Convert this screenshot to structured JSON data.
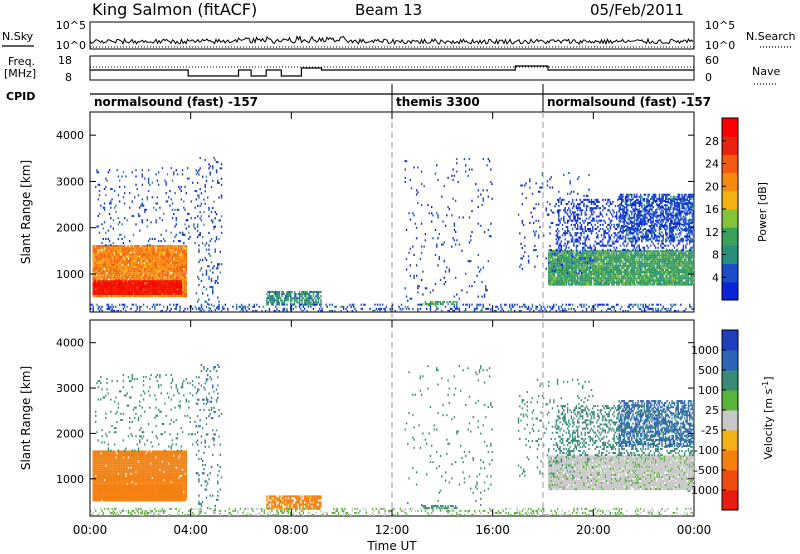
{
  "header": {
    "station": "King Salmon (fitACF)",
    "beam": "Beam 13",
    "date": "05/Feb/2011"
  },
  "summary_panels": {
    "nsky_label": "N.Sky",
    "nsearch_label": "N.Search",
    "noise_ticks": [
      "10^5",
      "10^0"
    ],
    "freq_label_line1": "Freq.",
    "freq_label_line2": "[MHz]",
    "freq_ticks": [
      "18",
      "8"
    ],
    "nave_label": "Nave",
    "nave_ticks": [
      "60",
      "0"
    ],
    "cpid_label": "CPID"
  },
  "cpid_segments": [
    {
      "name": "normalsound (fast) -157",
      "start_hour": 0
    },
    {
      "name": "themis 3300",
      "start_hour": 12
    },
    {
      "name": "normalsound (fast) -157",
      "start_hour": 18
    }
  ],
  "time_axis": {
    "ticks": [
      "00:00",
      "04:00",
      "08:00",
      "12:00",
      "16:00",
      "20:00",
      "00:00"
    ],
    "xlabel": "Time UT"
  },
  "range_axis": {
    "ylabel": "Slant Range [km]",
    "ticks": [
      "1000",
      "2000",
      "3000",
      "4000"
    ]
  },
  "power_colorbar": {
    "label": "Power [dB]",
    "ticks": [
      "4",
      "8",
      "12",
      "16",
      "20",
      "24",
      "28"
    ],
    "colors": [
      "#0a24d8",
      "#1b4dc8",
      "#2a8f7a",
      "#3aa05a",
      "#86c23a",
      "#f3b20d",
      "#f58a0e",
      "#f25c12",
      "#e8230f",
      "#ff0000"
    ]
  },
  "velocity_colorbar": {
    "label": "Velocity [m s",
    "label_sup": "-1",
    "label_end": "]",
    "ticks": [
      "1000",
      "500",
      "100",
      "25",
      "-25",
      "-100",
      "-500",
      "-1000"
    ],
    "colors": [
      "#1f3fbf",
      "#2e64b8",
      "#3b8a78",
      "#5bb43a",
      "#c8c8c8",
      "#f4b017",
      "#f38010",
      "#f04c10",
      "#e81c10"
    ]
  },
  "chart_data": {
    "type": "heatmap",
    "title": "King Salmon (fitACF)",
    "x": {
      "label": "Time UT",
      "range_hours": [
        0,
        24
      ],
      "ticks_hours": [
        0,
        4,
        8,
        12,
        16,
        20,
        24
      ]
    },
    "y": {
      "label": "Slant Range [km]",
      "range_km": [
        180,
        4500
      ],
      "ticks_km": [
        1000,
        2000,
        3000,
        4000
      ]
    },
    "grid": false,
    "scatter_regions": [
      {
        "t0": 0.1,
        "t1": 3.8,
        "r0": 500,
        "r1": 1600,
        "power_db": 22,
        "velocity": -200,
        "density": 0.97
      },
      {
        "t0": 0.1,
        "t1": 3.6,
        "r0": 550,
        "r1": 850,
        "power_db": 30,
        "velocity": -150,
        "density": 0.98
      },
      {
        "t0": 0.2,
        "t1": 4.2,
        "r0": 1600,
        "r1": 3300,
        "power_db": 6,
        "velocity": 150,
        "density": 0.07
      },
      {
        "t0": 4.2,
        "t1": 5.2,
        "r0": 200,
        "r1": 3500,
        "power_db": 6,
        "velocity": 300,
        "density": 0.1
      },
      {
        "t0": 7.0,
        "t1": 9.2,
        "r0": 320,
        "r1": 600,
        "power_db": 10,
        "velocity": -100,
        "density": 0.75
      },
      {
        "t0": 0.0,
        "t1": 24.0,
        "r0": 180,
        "r1": 320,
        "power_db": 6,
        "velocity": 30,
        "density": 0.25
      },
      {
        "t0": 13.2,
        "t1": 14.6,
        "r0": 330,
        "r1": 380,
        "power_db": 12,
        "velocity": 100,
        "density": 0.6
      },
      {
        "t0": 18.2,
        "t1": 24.0,
        "r0": 750,
        "r1": 1500,
        "power_db": 12,
        "velocity": 10,
        "density": 0.93
      },
      {
        "t0": 18.5,
        "t1": 24.0,
        "r0": 1500,
        "r1": 2600,
        "power_db": 5,
        "velocity": 120,
        "density": 0.3
      },
      {
        "t0": 21.0,
        "t1": 24.0,
        "r0": 1700,
        "r1": 2700,
        "power_db": 6,
        "velocity": 400,
        "density": 0.5
      },
      {
        "t0": 17.0,
        "t1": 20.0,
        "r0": 1000,
        "r1": 3200,
        "power_db": 5,
        "velocity": 150,
        "density": 0.06
      },
      {
        "t0": 12.5,
        "t1": 16.0,
        "r0": 400,
        "r1": 3500,
        "power_db": 5,
        "velocity": 200,
        "density": 0.03
      }
    ]
  }
}
